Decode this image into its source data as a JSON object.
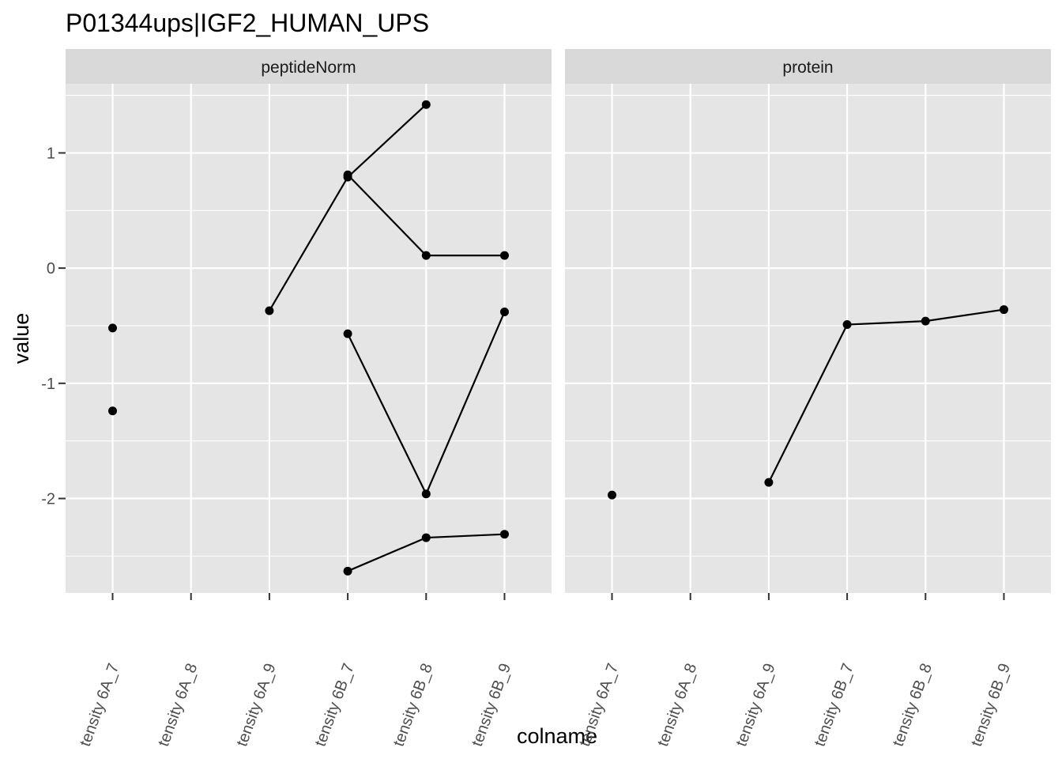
{
  "chart_data": {
    "type": "line",
    "title": "P01344ups|IGF2_HUMAN_UPS",
    "xlabel": "colname",
    "ylabel": "value",
    "x_tick_labels": [
      "tensity 6A_7",
      "tensity 6A_8",
      "tensity 6A_9",
      "tensity 6B_7",
      "tensity 6B_8",
      "tensity 6B_9"
    ],
    "y_ticks": [
      -2,
      -1,
      0,
      1
    ],
    "ylim": [
      -2.82,
      1.6
    ],
    "grid": true,
    "colors": {
      "panel_bg": "#e5e5e5",
      "strip_bg": "#d9d9d9",
      "grid": "#ffffff",
      "line": "#000000"
    },
    "panels": [
      {
        "strip": "peptideNorm",
        "series": [
          {
            "points": [
              [
                1,
                -0.52
              ]
            ]
          },
          {
            "points": [
              [
                1,
                -1.24
              ]
            ]
          },
          {
            "points": [
              [
                3,
                -0.37
              ],
              [
                4,
                0.79
              ],
              [
                5,
                1.42
              ]
            ]
          },
          {
            "points": [
              [
                4,
                0.81
              ],
              [
                5,
                0.11
              ],
              [
                6,
                0.11
              ]
            ]
          },
          {
            "points": [
              [
                4,
                -0.57
              ],
              [
                5,
                -1.96
              ],
              [
                6,
                -0.38
              ]
            ]
          },
          {
            "points": [
              [
                4,
                -2.63
              ],
              [
                5,
                -2.34
              ],
              [
                6,
                -2.31
              ]
            ]
          }
        ]
      },
      {
        "strip": "protein",
        "series": [
          {
            "points": [
              [
                1,
                -1.97
              ]
            ]
          },
          {
            "points": [
              [
                3,
                -1.86
              ],
              [
                4,
                -0.49
              ],
              [
                5,
                -0.46
              ],
              [
                6,
                -0.36
              ]
            ]
          }
        ]
      }
    ]
  }
}
